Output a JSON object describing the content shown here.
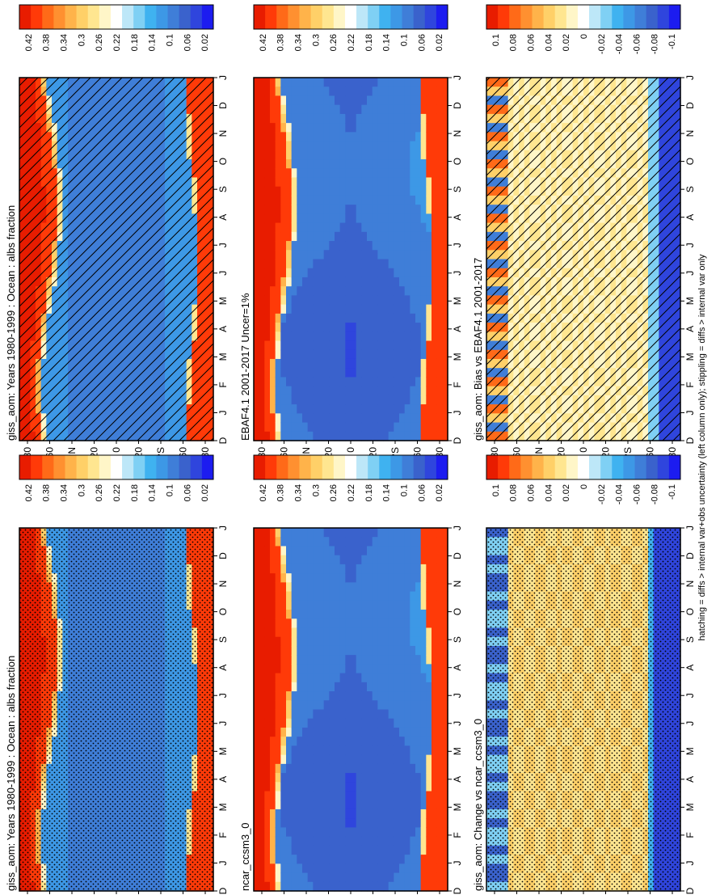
{
  "footer": "hatching = diffs > internal var+obs uncertainty (left column only); stippling = diffs > internal var only",
  "palettes": {
    "albedo": [
      "#1c1cf0",
      "#2f45dd",
      "#3a62cc",
      "#3f7ed8",
      "#3d98e6",
      "#3fb2f0",
      "#7fd0f4",
      "#bde7f8",
      "#ffffff",
      "#fff6c8",
      "#ffe690",
      "#ffd068",
      "#ffb34a",
      "#ff9030",
      "#ff6a18",
      "#ff3a08",
      "#e81c00"
    ],
    "diff": [
      "#1c1cf0",
      "#2f45dd",
      "#3a62cc",
      "#3f7ed8",
      "#3d98e6",
      "#3fb2f0",
      "#7fd0f4",
      "#bde7f8",
      "#ffffff",
      "#fff6c8",
      "#ffe690",
      "#ffd068",
      "#ffb34a",
      "#ff9030",
      "#ff6a18",
      "#ff3a08",
      "#e81c00"
    ]
  },
  "chart_data": [
    {
      "type": "heatmap",
      "title": "giss_aom: Years 1980-1999 : Ocean : albs fraction",
      "x_ticks": [
        "D",
        "J",
        "F",
        "M",
        "A",
        "M",
        "J",
        "J",
        "A",
        "S",
        "O",
        "N",
        "D",
        "J"
      ],
      "y_ticks": [
        "80",
        "60",
        "°N",
        "20",
        "0",
        "20",
        "°S",
        "60",
        "80"
      ],
      "colorbar": [
        "0.42",
        "0.38",
        "0.34",
        "0.3",
        "0.26",
        "0.22",
        "0.18",
        "0.14",
        "0.1",
        "0.06",
        "0.02"
      ],
      "palette": "albedo",
      "field": "albedo",
      "overlay": "hatch"
    },
    {
      "type": "heatmap",
      "title": "giss_aom: Years 1980-1999 : Ocean : albs fraction",
      "x_ticks": [
        "D",
        "J",
        "F",
        "M",
        "A",
        "M",
        "J",
        "J",
        "A",
        "S",
        "O",
        "N",
        "D",
        "J"
      ],
      "y_ticks": [
        "80",
        "60",
        "°N",
        "20",
        "0",
        "20",
        "°S",
        "60",
        "80"
      ],
      "colorbar": [
        "0.42",
        "0.38",
        "0.34",
        "0.3",
        "0.26",
        "0.22",
        "0.18",
        "0.14",
        "0.1",
        "0.06",
        "0.02"
      ],
      "palette": "albedo",
      "field": "albedo",
      "overlay": "stipple"
    },
    {
      "type": "heatmap",
      "title": "EBAF4.1 2001-2017 Uncer=1%",
      "x_ticks": [
        "D",
        "J",
        "F",
        "M",
        "A",
        "M",
        "J",
        "J",
        "A",
        "S",
        "O",
        "N",
        "D",
        "J"
      ],
      "y_ticks": [
        "80",
        "60",
        "°N",
        "20",
        "0",
        "20",
        "°S",
        "60",
        "80"
      ],
      "colorbar": [
        "0.42",
        "0.38",
        "0.34",
        "0.3",
        "0.26",
        "0.22",
        "0.18",
        "0.14",
        "0.1",
        "0.06",
        "0.02"
      ],
      "palette": "albedo",
      "field": "albedo2",
      "overlay": "none"
    },
    {
      "type": "heatmap",
      "title": "ncar_ccsm3_0",
      "x_ticks": [
        "D",
        "J",
        "F",
        "M",
        "A",
        "M",
        "J",
        "J",
        "A",
        "S",
        "O",
        "N",
        "D",
        "J"
      ],
      "y_ticks": [
        "80",
        "60",
        "°N",
        "20",
        "0",
        "20",
        "°S",
        "60",
        "80"
      ],
      "colorbar": [
        "0.42",
        "0.38",
        "0.34",
        "0.3",
        "0.26",
        "0.22",
        "0.18",
        "0.14",
        "0.1",
        "0.06",
        "0.02"
      ],
      "palette": "albedo",
      "field": "albedo2",
      "overlay": "none"
    },
    {
      "type": "heatmap",
      "title": "giss_aom: Bias vs EBAF4.1 2001-2017",
      "x_ticks": [
        "D",
        "J",
        "F",
        "M",
        "A",
        "M",
        "J",
        "J",
        "A",
        "S",
        "O",
        "N",
        "D",
        "J"
      ],
      "y_ticks": [
        "80",
        "60",
        "°N",
        "20",
        "0",
        "20",
        "°S",
        "60",
        "80"
      ],
      "colorbar": [
        "0.1",
        "0.08",
        "0.06",
        "0.04",
        "0.02",
        "0",
        "-0.02",
        "-0.04",
        "-0.06",
        "-0.08",
        "-0.1"
      ],
      "palette": "diff",
      "field": "bias",
      "overlay": "hatch"
    },
    {
      "type": "heatmap",
      "title": "giss_aom: Change vs ncar_ccsm3_0",
      "x_ticks": [
        "D",
        "J",
        "F",
        "M",
        "A",
        "M",
        "J",
        "J",
        "A",
        "S",
        "O",
        "N",
        "D",
        "J"
      ],
      "y_ticks": [
        "80",
        "60",
        "°N",
        "20",
        "0",
        "20",
        "°S",
        "60",
        "80"
      ],
      "colorbar": [
        "0.1",
        "0.08",
        "0.06",
        "0.04",
        "0.02",
        "0",
        "-0.02",
        "-0.04",
        "-0.06",
        "-0.08",
        "-0.1"
      ],
      "palette": "diff",
      "field": "change",
      "overlay": "stipple"
    }
  ]
}
